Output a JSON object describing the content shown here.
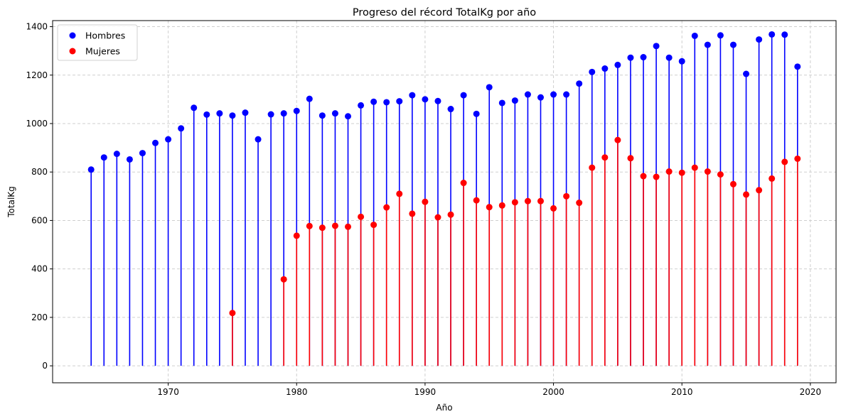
{
  "chart_data": {
    "type": "stem",
    "title": "Progreso del récord TotalKg por año",
    "xlabel": "Año",
    "ylabel": "TotalKg",
    "xlim": [
      1961,
      2022
    ],
    "ylim": [
      -70,
      1425
    ],
    "xticks": [
      1970,
      1980,
      1990,
      2000,
      2010,
      2020
    ],
    "yticks": [
      0,
      200,
      400,
      600,
      800,
      1000,
      1200,
      1400
    ],
    "grid": true,
    "legend_position": "top-left",
    "series": [
      {
        "name": "Hombres",
        "color": "#0000ff",
        "x": [
          1964,
          1965,
          1966,
          1967,
          1968,
          1969,
          1970,
          1971,
          1972,
          1973,
          1974,
          1975,
          1976,
          1977,
          1978,
          1979,
          1980,
          1981,
          1982,
          1983,
          1984,
          1985,
          1986,
          1987,
          1988,
          1989,
          1990,
          1991,
          1992,
          1993,
          1994,
          1995,
          1996,
          1997,
          1998,
          1999,
          2000,
          2001,
          2002,
          2003,
          2004,
          2005,
          2006,
          2007,
          2008,
          2009,
          2010,
          2011,
          2012,
          2013,
          2014,
          2015,
          2016,
          2017,
          2018,
          2019
        ],
        "y": [
          810,
          860,
          875,
          852,
          878,
          920,
          935,
          980,
          1065,
          1037,
          1042,
          1033,
          1045,
          935,
          1038,
          1042,
          1052,
          1102,
          1033,
          1042,
          1030,
          1075,
          1090,
          1088,
          1092,
          1117,
          1100,
          1093,
          1060,
          1117,
          1040,
          1150,
          1085,
          1095,
          1120,
          1108,
          1120,
          1120,
          1165,
          1213,
          1227,
          1242,
          1272,
          1274,
          1320,
          1272,
          1257,
          1362,
          1325,
          1364,
          1325,
          1205,
          1347,
          1368,
          1367,
          1235
        ]
      },
      {
        "name": "Mujeres",
        "color": "#ff0000",
        "x": [
          1975,
          1979,
          1980,
          1981,
          1982,
          1983,
          1984,
          1985,
          1986,
          1987,
          1988,
          1989,
          1990,
          1991,
          1992,
          1993,
          1994,
          1995,
          1996,
          1997,
          1998,
          1999,
          2000,
          2001,
          2002,
          2003,
          2004,
          2005,
          2006,
          2007,
          2008,
          2009,
          2010,
          2011,
          2012,
          2013,
          2014,
          2015,
          2016,
          2017,
          2018,
          2019
        ],
        "y": [
          218,
          357,
          537,
          577,
          570,
          578,
          574,
          615,
          582,
          654,
          710,
          628,
          677,
          613,
          624,
          755,
          683,
          655,
          662,
          675,
          680,
          680,
          650,
          700,
          673,
          818,
          860,
          932,
          857,
          783,
          780,
          802,
          797,
          818,
          802,
          790,
          750,
          707,
          725,
          773,
          842,
          855
        ]
      }
    ]
  }
}
